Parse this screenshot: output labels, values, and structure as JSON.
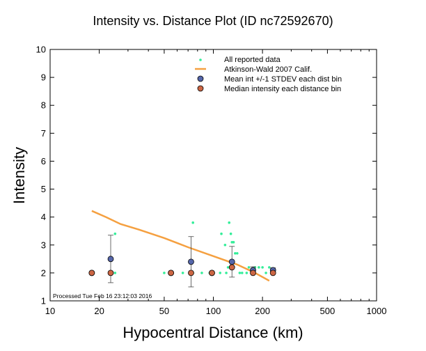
{
  "chart_data": {
    "type": "scatter",
    "title": "Intensity vs. Distance Plot (ID nc72592670)",
    "xlabel": "Hypocentral Distance (km)",
    "ylabel": "Intensity",
    "x_scale": "log",
    "xlim": [
      10,
      1000
    ],
    "ylim": [
      1,
      10
    ],
    "x_ticks": [
      10,
      20,
      50,
      100,
      200,
      500,
      1000
    ],
    "x_tick_labels": [
      "10",
      "20",
      "50",
      "100",
      "200",
      "500",
      "1000"
    ],
    "y_ticks": [
      1,
      2,
      3,
      4,
      5,
      6,
      7,
      8,
      9,
      10
    ],
    "y_tick_labels": [
      "1",
      "2",
      "3",
      "4",
      "5",
      "6",
      "7",
      "8",
      "9",
      "10"
    ],
    "grid": false,
    "legend_position": "top-right",
    "legend": [
      {
        "label": "All reported data",
        "kind": "dot",
        "color": "#33ee99"
      },
      {
        "label": "Atkinson-Wald 2007 Calif.",
        "kind": "line",
        "color": "#f5a040"
      },
      {
        "label": "Mean int +/-1 STDEV each dist bin",
        "kind": "circle",
        "color": "#5566aa"
      },
      {
        "label": "Median intensity each distance bin",
        "kind": "circle",
        "color": "#cc6644"
      }
    ],
    "series": [
      {
        "name": "All reported data",
        "kind": "scatter",
        "color": "#33ee99",
        "points": [
          [
            25,
            3.4
          ],
          [
            25,
            2.0
          ],
          [
            50,
            2.0
          ],
          [
            65,
            2.0
          ],
          [
            75,
            3.8
          ],
          [
            75,
            2.0
          ],
          [
            85,
            2.0
          ],
          [
            95,
            2.0
          ],
          [
            110,
            2.0
          ],
          [
            112,
            3.4
          ],
          [
            118,
            3.0
          ],
          [
            120,
            2.0
          ],
          [
            123,
            2.2
          ],
          [
            125,
            3.8
          ],
          [
            128,
            3.4
          ],
          [
            130,
            3.1
          ],
          [
            133,
            3.1
          ],
          [
            136,
            2.7
          ],
          [
            140,
            2.7
          ],
          [
            145,
            2.0
          ],
          [
            150,
            2.0
          ],
          [
            160,
            2.0
          ],
          [
            165,
            2.2
          ],
          [
            175,
            2.0
          ],
          [
            180,
            2.2
          ],
          [
            190,
            2.2
          ],
          [
            200,
            2.2
          ],
          [
            210,
            2.0
          ],
          [
            220,
            2.2
          ],
          [
            235,
            2.0
          ]
        ]
      },
      {
        "name": "Atkinson-Wald 2007 Calif.",
        "kind": "line",
        "color": "#f5a040",
        "points": [
          [
            18,
            4.22
          ],
          [
            22,
            4.0
          ],
          [
            27,
            3.75
          ],
          [
            35,
            3.55
          ],
          [
            50,
            3.25
          ],
          [
            70,
            2.92
          ],
          [
            100,
            2.6
          ],
          [
            140,
            2.3
          ],
          [
            180,
            2.0
          ],
          [
            220,
            1.72
          ]
        ]
      },
      {
        "name": "Mean int +/-1 STDEV each dist bin",
        "kind": "mean_errorbar",
        "color": "#5566aa",
        "points": [
          {
            "x": 18,
            "y": 2.0,
            "err": 0
          },
          {
            "x": 23.5,
            "y": 2.5,
            "err": 0.85
          },
          {
            "x": 55,
            "y": 2.0,
            "err": 0
          },
          {
            "x": 73,
            "y": 2.4,
            "err": 0.9
          },
          {
            "x": 98,
            "y": 2.0,
            "err": 0
          },
          {
            "x": 130,
            "y": 2.4,
            "err": 0.55
          },
          {
            "x": 175,
            "y": 2.1,
            "err": 0.12
          },
          {
            "x": 232,
            "y": 2.1,
            "err": 0.08
          }
        ]
      },
      {
        "name": "Median intensity each distance bin",
        "kind": "median",
        "color": "#cc6644",
        "points": [
          [
            18,
            2.0
          ],
          [
            23.5,
            2.0
          ],
          [
            55,
            2.0
          ],
          [
            73,
            2.0
          ],
          [
            98,
            2.0
          ],
          [
            130,
            2.2
          ],
          [
            175,
            2.0
          ],
          [
            232,
            2.0
          ]
        ]
      }
    ],
    "annotation": "Processed Tue Feb 16 23:12:03 2016"
  }
}
